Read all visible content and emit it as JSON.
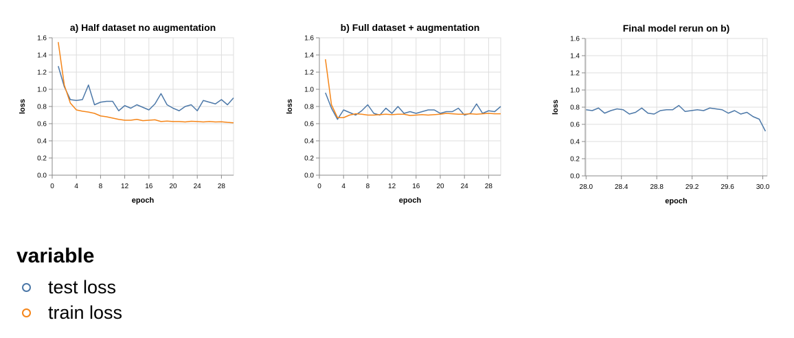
{
  "chart_data": [
    {
      "type": "line",
      "title": "a) Half dataset no augmentation",
      "xlabel": "epoch",
      "ylabel": "loss",
      "xlim": [
        0,
        30
      ],
      "ylim": [
        0,
        1.6
      ],
      "xticks": [
        0,
        4,
        8,
        12,
        16,
        20,
        24,
        28
      ],
      "yticks": [
        0.0,
        0.2,
        0.4,
        0.6,
        0.8,
        1.0,
        1.2,
        1.4,
        1.6
      ],
      "tick_decimals": {
        "x": 0,
        "y": 1
      },
      "grid": true,
      "x": [
        1,
        2,
        3,
        4,
        5,
        6,
        7,
        8,
        9,
        10,
        11,
        12,
        13,
        14,
        15,
        16,
        17,
        18,
        19,
        20,
        21,
        22,
        23,
        24,
        25,
        26,
        27,
        28,
        29,
        30
      ],
      "series": [
        {
          "name": "test loss",
          "values": [
            1.27,
            1.03,
            0.88,
            0.87,
            0.88,
            1.05,
            0.82,
            0.85,
            0.86,
            0.86,
            0.75,
            0.81,
            0.78,
            0.82,
            0.79,
            0.76,
            0.83,
            0.95,
            0.82,
            0.78,
            0.75,
            0.8,
            0.82,
            0.75,
            0.87,
            0.85,
            0.83,
            0.88,
            0.82,
            0.9
          ]
        },
        {
          "name": "train loss",
          "values": [
            1.55,
            1.05,
            0.84,
            0.76,
            0.745,
            0.735,
            0.72,
            0.69,
            0.68,
            0.665,
            0.65,
            0.64,
            0.64,
            0.65,
            0.635,
            0.64,
            0.645,
            0.625,
            0.63,
            0.625,
            0.625,
            0.62,
            0.628,
            0.625,
            0.62,
            0.625,
            0.62,
            0.622,
            0.615,
            0.61
          ]
        }
      ]
    },
    {
      "type": "line",
      "title": "b) Full dataset + augmentation",
      "xlabel": "epoch",
      "ylabel": "loss",
      "xlim": [
        0,
        30
      ],
      "ylim": [
        0,
        1.6
      ],
      "xticks": [
        0,
        4,
        8,
        12,
        16,
        20,
        24,
        28
      ],
      "yticks": [
        0.0,
        0.2,
        0.4,
        0.6,
        0.8,
        1.0,
        1.2,
        1.4,
        1.6
      ],
      "tick_decimals": {
        "x": 0,
        "y": 1
      },
      "grid": true,
      "x": [
        1,
        2,
        3,
        4,
        5,
        6,
        7,
        8,
        9,
        10,
        11,
        12,
        13,
        14,
        15,
        16,
        17,
        18,
        19,
        20,
        21,
        22,
        23,
        24,
        25,
        26,
        27,
        28,
        29,
        30
      ],
      "series": [
        {
          "name": "test loss",
          "values": [
            0.96,
            0.78,
            0.65,
            0.76,
            0.73,
            0.7,
            0.75,
            0.82,
            0.72,
            0.7,
            0.78,
            0.72,
            0.8,
            0.72,
            0.74,
            0.72,
            0.74,
            0.76,
            0.76,
            0.72,
            0.74,
            0.74,
            0.78,
            0.7,
            0.72,
            0.83,
            0.72,
            0.75,
            0.74,
            0.8
          ]
        },
        {
          "name": "train loss",
          "values": [
            1.35,
            0.82,
            0.67,
            0.67,
            0.7,
            0.715,
            0.71,
            0.7,
            0.7,
            0.705,
            0.71,
            0.705,
            0.71,
            0.71,
            0.695,
            0.7,
            0.705,
            0.7,
            0.705,
            0.71,
            0.72,
            0.715,
            0.71,
            0.71,
            0.715,
            0.71,
            0.715,
            0.72,
            0.715,
            0.715
          ]
        }
      ]
    },
    {
      "type": "line",
      "title": "Final model rerun on b)",
      "xlabel": "epoch",
      "ylabel": "loss",
      "xlim": [
        27.99,
        30.05
      ],
      "ylim": [
        0,
        1.6
      ],
      "xticks": [
        28.0,
        28.4,
        28.8,
        29.2,
        29.6,
        30.0
      ],
      "yticks": [
        0.0,
        0.2,
        0.4,
        0.6,
        0.8,
        1.0,
        1.2,
        1.4,
        1.6
      ],
      "tick_decimals": {
        "x": 1,
        "y": 1
      },
      "grid": true,
      "x": [
        28.0,
        28.07,
        28.14,
        28.21,
        28.28,
        28.35,
        28.42,
        28.49,
        28.56,
        28.63,
        28.7,
        28.77,
        28.84,
        28.91,
        28.98,
        29.05,
        29.12,
        29.19,
        29.26,
        29.33,
        29.4,
        29.47,
        29.54,
        29.61,
        29.68,
        29.75,
        29.82,
        29.89,
        29.96,
        30.03
      ],
      "series": [
        {
          "name": "test loss",
          "values": [
            0.77,
            0.76,
            0.79,
            0.73,
            0.76,
            0.78,
            0.77,
            0.72,
            0.74,
            0.79,
            0.73,
            0.72,
            0.76,
            0.77,
            0.77,
            0.82,
            0.75,
            0.76,
            0.77,
            0.76,
            0.79,
            0.78,
            0.77,
            0.73,
            0.76,
            0.72,
            0.74,
            0.69,
            0.66,
            0.52
          ]
        }
      ]
    }
  ],
  "legend": {
    "title": "variable",
    "placement": "bottom-left",
    "items": [
      {
        "label": "test loss",
        "color": "#4c78a8"
      },
      {
        "label": "train loss",
        "color": "#f58518"
      }
    ]
  }
}
